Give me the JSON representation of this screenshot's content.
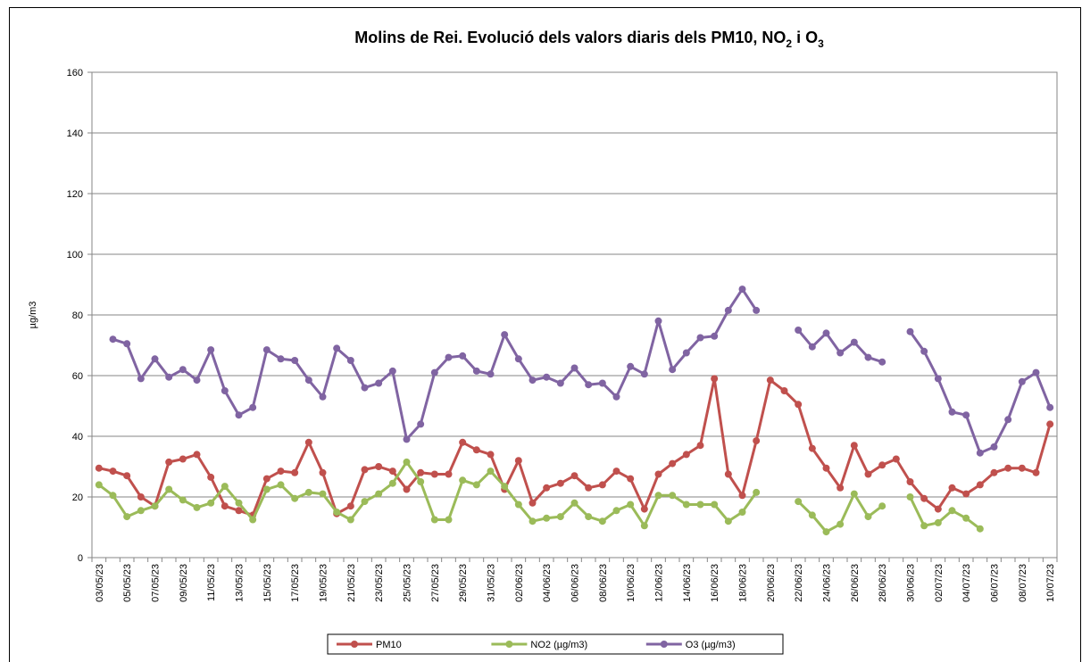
{
  "chart_data": {
    "type": "line",
    "title": [
      "Molins de Rei. Evolució dels valors diaris dels PM10, NO",
      "2",
      " i O",
      "3"
    ],
    "y_label": "µg/m3",
    "categories": [
      "03/05/23",
      null,
      "05/05/23",
      null,
      "07/05/23",
      null,
      "09/05/23",
      null,
      "11/05/23",
      null,
      "13/05/23",
      null,
      "15/05/23",
      null,
      "17/05/23",
      null,
      "19/05/23",
      null,
      "21/05/23",
      null,
      "23/05/23",
      null,
      "25/05/23",
      null,
      "27/05/23",
      null,
      "29/05/23",
      null,
      "31/05/23",
      null,
      "02/06/23",
      null,
      "04/06/23",
      null,
      "06/06/23",
      null,
      "08/06/23",
      null,
      "10/06/23",
      null,
      "12/06/23",
      null,
      "14/06/23",
      null,
      "16/06/23",
      null,
      "18/06/23",
      null,
      "20/06/23",
      null,
      "22/06/23",
      null,
      "24/06/23",
      null,
      "26/06/23",
      null,
      "28/06/23",
      null,
      "30/06/23",
      null,
      "02/07/23",
      null,
      "04/07/23",
      null,
      "06/07/23",
      null,
      "08/07/23",
      null,
      "10/07/23"
    ],
    "series": [
      {
        "name": "PM10",
        "color": "#c0504d",
        "values": [
          29.5,
          28.5,
          27,
          20,
          17,
          31.5,
          32.5,
          34,
          26.5,
          17,
          15.5,
          14,
          26,
          28.5,
          28,
          38,
          28,
          14.5,
          17,
          29,
          30,
          28.5,
          22.5,
          28,
          27.5,
          27.5,
          38,
          35.5,
          34,
          22.5,
          32,
          18,
          23,
          24.5,
          27,
          23,
          24,
          28.5,
          26,
          16,
          27.5,
          31,
          34,
          37,
          59,
          27.5,
          20.5,
          38.5,
          58.5,
          55,
          50.5,
          36,
          29.5,
          23,
          37,
          27.5,
          30.5,
          32.5,
          25,
          19.5,
          16,
          23,
          21,
          24,
          28,
          29.5,
          29.5,
          28,
          44
        ]
      },
      {
        "name": "NO2 (µg/m3)",
        "color": "#9bbb59",
        "values": [
          24,
          20.5,
          13.5,
          15.5,
          17,
          22.5,
          19,
          16.5,
          18,
          23.5,
          18,
          12.5,
          22.5,
          24,
          19.5,
          21.5,
          21,
          15,
          12.5,
          18.5,
          21,
          24.5,
          31.5,
          25,
          12.5,
          12.5,
          25.5,
          24,
          28.5,
          23.5,
          17.5,
          12,
          13,
          13.5,
          18,
          13.5,
          12,
          15.5,
          17.5,
          10.5,
          20.5,
          20.5,
          17.5,
          17.5,
          17.5,
          12,
          15,
          21.5,
          null,
          null,
          18.5,
          14,
          8.5,
          11,
          21,
          13.5,
          17,
          null,
          20,
          10.5,
          11.5,
          15.5,
          13,
          9.5,
          null,
          null,
          null,
          null,
          null
        ]
      },
      {
        "name": "O3 (µg/m3)",
        "color": "#8064a2",
        "values": [
          null,
          72,
          70.5,
          59,
          65.5,
          59.5,
          62,
          58.5,
          68.5,
          55,
          47,
          49.5,
          68.5,
          65.5,
          65,
          58.5,
          53,
          69,
          65,
          56,
          57.5,
          61.5,
          39,
          44,
          61,
          66,
          66.5,
          61.5,
          60.5,
          73.5,
          65.5,
          58.5,
          59.5,
          57.5,
          62.5,
          57,
          57.5,
          53,
          63,
          60.5,
          78,
          62,
          67.5,
          72.5,
          73,
          81.5,
          88.5,
          81.5,
          null,
          null,
          75,
          69.5,
          74,
          67.5,
          71,
          66,
          64.5,
          null,
          74.5,
          68,
          59,
          48,
          47,
          34.5,
          36.5,
          45.5,
          58,
          61,
          49.5
        ]
      }
    ],
    "ylim": [
      0,
      160
    ],
    "yticks": [
      0,
      20,
      40,
      60,
      80,
      100,
      120,
      140,
      160
    ],
    "grid": true,
    "legend": "bottom"
  }
}
